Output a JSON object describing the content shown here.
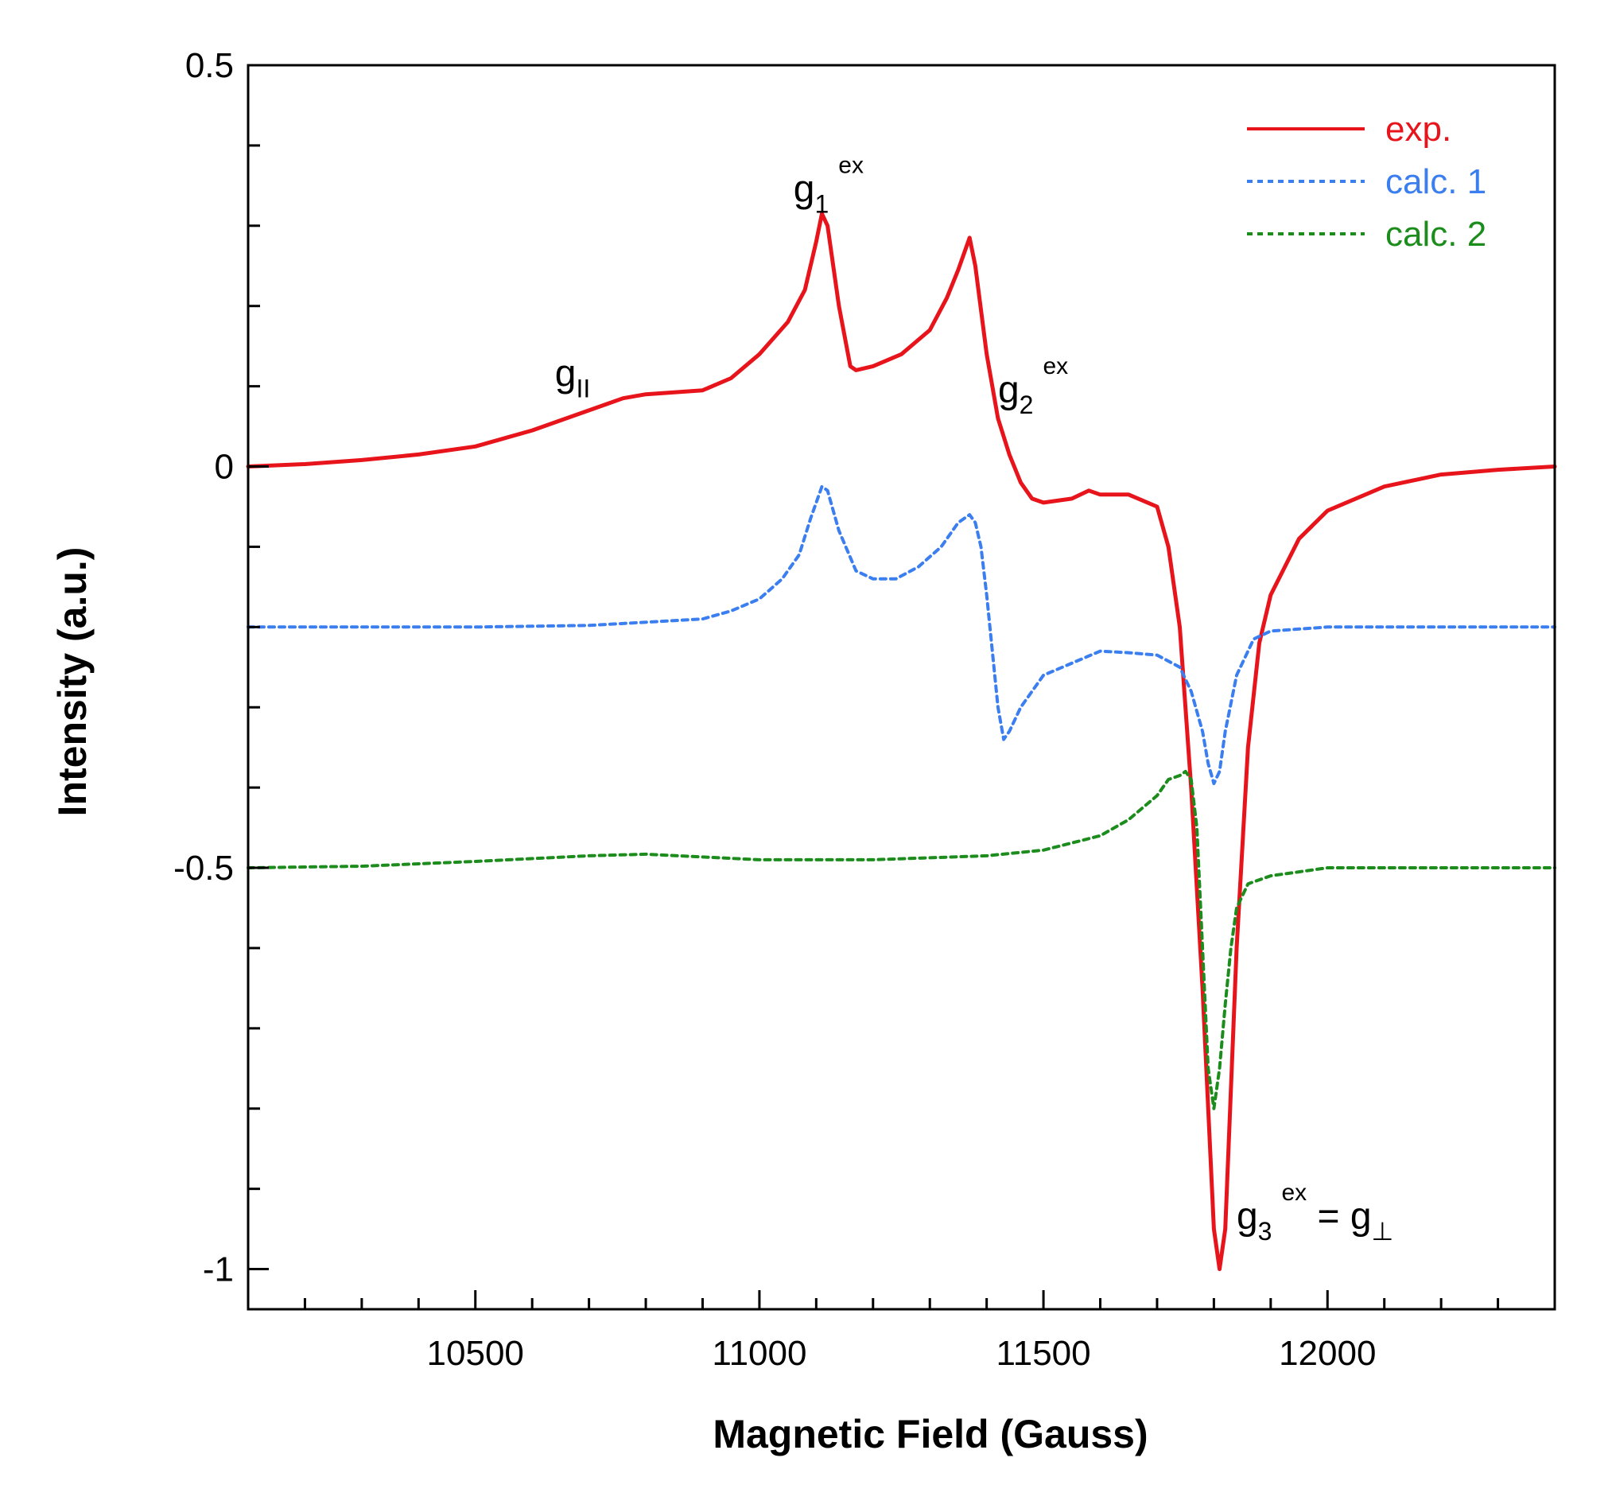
{
  "chart_data": {
    "type": "line",
    "title": "",
    "xlabel": "Magnetic Field (Gauss)",
    "ylabel": "Intensity (a.u.)",
    "xlim": [
      10100,
      12400
    ],
    "ylim": [
      -1.05,
      0.5
    ],
    "x_ticks": [
      10500,
      11000,
      11500,
      12000
    ],
    "x_tick_labels": [
      "10500",
      "11000",
      "11500",
      "12000"
    ],
    "y_ticks": [
      0.5,
      0,
      -0.5,
      -1
    ],
    "y_tick_labels": [
      "0.5",
      "0",
      "-0.5",
      "-1"
    ],
    "legend_position": "top-right",
    "series": [
      {
        "name": "exp.",
        "color": "#e8141b",
        "style": "solid",
        "x": [
          10100,
          10200,
          10300,
          10400,
          10500,
          10600,
          10700,
          10760,
          10800,
          10900,
          10950,
          11000,
          11050,
          11080,
          11100,
          11110,
          11120,
          11140,
          11160,
          11170,
          11200,
          11250,
          11300,
          11330,
          11350,
          11370,
          11380,
          11400,
          11420,
          11440,
          11460,
          11480,
          11500,
          11550,
          11580,
          11600,
          11650,
          11700,
          11720,
          11740,
          11760,
          11780,
          11800,
          11810,
          11820,
          11840,
          11860,
          11880,
          11900,
          11950,
          12000,
          12100,
          12200,
          12300,
          12400
        ],
        "values": [
          0,
          0.003,
          0.008,
          0.015,
          0.025,
          0.045,
          0.07,
          0.085,
          0.09,
          0.095,
          0.11,
          0.14,
          0.18,
          0.22,
          0.28,
          0.315,
          0.3,
          0.2,
          0.125,
          0.12,
          0.125,
          0.14,
          0.17,
          0.21,
          0.245,
          0.285,
          0.25,
          0.14,
          0.06,
          0.015,
          -0.02,
          -0.04,
          -0.045,
          -0.04,
          -0.03,
          -0.035,
          -0.035,
          -0.05,
          -0.1,
          -0.2,
          -0.4,
          -0.65,
          -0.95,
          -1.0,
          -0.95,
          -0.6,
          -0.35,
          -0.22,
          -0.16,
          -0.09,
          -0.055,
          -0.025,
          -0.01,
          -0.004,
          0
        ]
      },
      {
        "name": "calc. 1",
        "color": "#3b7ef0",
        "style": "dashed",
        "x": [
          10100,
          10500,
          10700,
          10900,
          10950,
          11000,
          11040,
          11070,
          11090,
          11110,
          11120,
          11140,
          11170,
          11200,
          11240,
          11280,
          11320,
          11350,
          11370,
          11380,
          11390,
          11400,
          11420,
          11430,
          11440,
          11460,
          11500,
          11600,
          11650,
          11700,
          11740,
          11760,
          11780,
          11790,
          11800,
          11810,
          11820,
          11840,
          11870,
          11900,
          12000,
          12400
        ],
        "values": [
          -0.2,
          -0.2,
          -0.198,
          -0.19,
          -0.18,
          -0.165,
          -0.14,
          -0.11,
          -0.065,
          -0.025,
          -0.03,
          -0.08,
          -0.13,
          -0.14,
          -0.14,
          -0.125,
          -0.1,
          -0.07,
          -0.06,
          -0.07,
          -0.1,
          -0.16,
          -0.3,
          -0.34,
          -0.33,
          -0.3,
          -0.26,
          -0.23,
          -0.232,
          -0.235,
          -0.25,
          -0.28,
          -0.33,
          -0.37,
          -0.395,
          -0.38,
          -0.33,
          -0.26,
          -0.215,
          -0.205,
          -0.2,
          -0.2
        ]
      },
      {
        "name": "calc. 2",
        "color": "#1c8c1c",
        "style": "dashed",
        "x": [
          10100,
          10300,
          10500,
          10700,
          10800,
          11000,
          11200,
          11400,
          11500,
          11600,
          11650,
          11700,
          11720,
          11740,
          11750,
          11760,
          11770,
          11780,
          11790,
          11800,
          11810,
          11820,
          11830,
          11840,
          11860,
          11900,
          11950,
          12000,
          12100,
          12200,
          12400
        ],
        "values": [
          -0.5,
          -0.498,
          -0.492,
          -0.485,
          -0.483,
          -0.49,
          -0.49,
          -0.485,
          -0.478,
          -0.46,
          -0.44,
          -0.41,
          -0.39,
          -0.385,
          -0.38,
          -0.39,
          -0.45,
          -0.6,
          -0.75,
          -0.8,
          -0.75,
          -0.67,
          -0.6,
          -0.55,
          -0.52,
          -0.51,
          -0.505,
          -0.5,
          -0.5,
          -0.5,
          -0.5
        ]
      }
    ],
    "annotations": [
      {
        "id": "g-parallel",
        "base": "g",
        "sub": "II",
        "sup": "",
        "suffix": "",
        "x": 10640,
        "y": 0.1
      },
      {
        "id": "g1-ex",
        "base": "g",
        "sub": "1",
        "sup": "ex",
        "suffix": "",
        "x": 11060,
        "y": 0.33
      },
      {
        "id": "g2-ex",
        "base": "g",
        "sub": "2",
        "sup": "ex",
        "suffix": "",
        "x": 11420,
        "y": 0.08
      },
      {
        "id": "g3-ex-equals-g-perp",
        "base": "g",
        "sub": "3",
        "sup": "ex",
        "suffix": " = g",
        "suffix_sub": "⊥",
        "x": 11840,
        "y": -0.95
      }
    ]
  }
}
